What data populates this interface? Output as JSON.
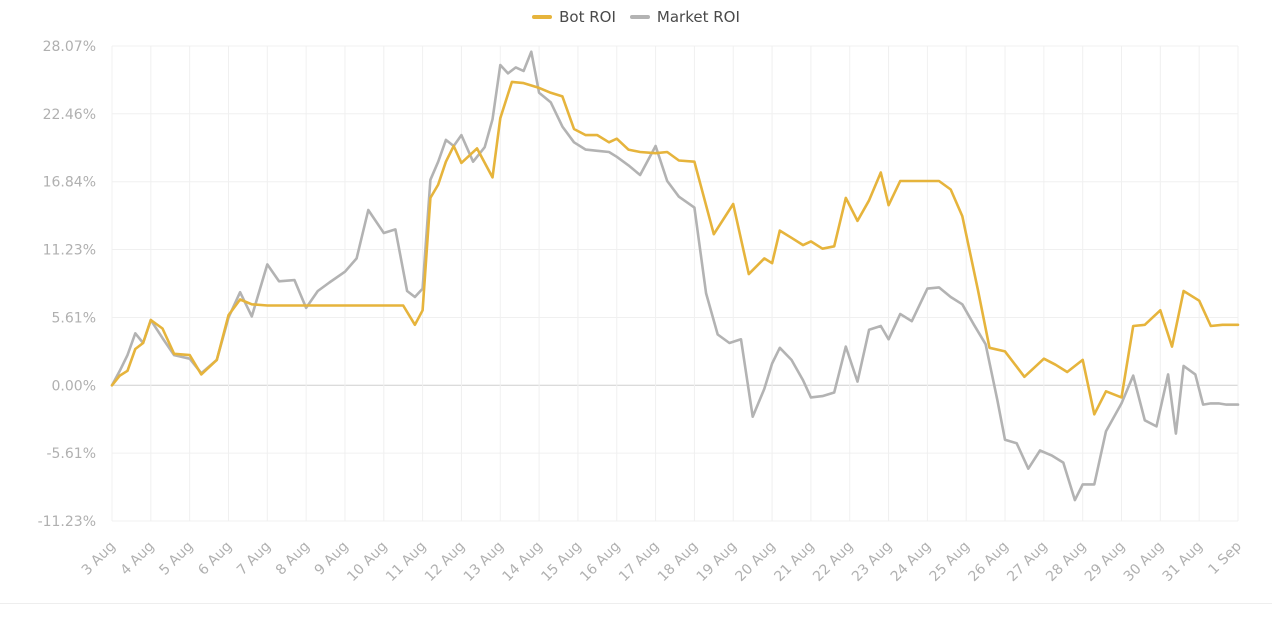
{
  "legend": [
    {
      "label": "Bot ROI",
      "color": "#e6b43c"
    },
    {
      "label": "Market ROI",
      "color": "#b3b3b3"
    }
  ],
  "chart_data": {
    "type": "line",
    "y_ticks": [
      "28.07%",
      "22.46%",
      "16.84%",
      "11.23%",
      "5.61%",
      "0.00%",
      "-5.61%",
      "-11.23%"
    ],
    "y_tick_values": [
      28.07,
      22.46,
      16.84,
      11.23,
      5.61,
      0.0,
      -5.61,
      -11.23
    ],
    "ylim": [
      -11.23,
      28.07
    ],
    "x_ticks": [
      "3 Aug",
      "4 Aug",
      "5 Aug",
      "6 Aug",
      "7 Aug",
      "8 Aug",
      "9 Aug",
      "10 Aug",
      "11 Aug",
      "12 Aug",
      "13 Aug",
      "14 Aug",
      "15 Aug",
      "16 Aug",
      "17 Aug",
      "18 Aug",
      "19 Aug",
      "20 Aug",
      "21 Aug",
      "22 Aug",
      "23 Aug",
      "24 Aug",
      "25 Aug",
      "26 Aug",
      "27 Aug",
      "28 Aug",
      "29 Aug",
      "30 Aug",
      "31 Aug",
      "1 Sep"
    ],
    "grid": true,
    "legend_position": "top-center",
    "series": [
      {
        "name": "Bot ROI",
        "color": "#e6b43c",
        "x": [
          0,
          0.2,
          0.4,
          0.6,
          0.8,
          1.0,
          1.3,
          1.6,
          2.0,
          2.3,
          2.7,
          3.0,
          3.3,
          3.6,
          4.0,
          4.3,
          4.7,
          5.0,
          5.3,
          5.6,
          6.0,
          6.5,
          7.0,
          7.5,
          7.8,
          8.0,
          8.2,
          8.4,
          8.6,
          8.8,
          9.0,
          9.4,
          9.8,
          10.0,
          10.3,
          10.6,
          11.0,
          11.3,
          11.6,
          11.9,
          12.2,
          12.5,
          12.8,
          13.0,
          13.3,
          13.6,
          14.0,
          14.3,
          14.6,
          15.0,
          15.5,
          16.0,
          16.4,
          16.8,
          17.0,
          17.2,
          17.5,
          17.8,
          18.0,
          18.3,
          18.6,
          18.9,
          19.2,
          19.5,
          19.8,
          20.0,
          20.3,
          20.6,
          21.0,
          21.3,
          21.6,
          21.9,
          22.3,
          22.6,
          23.0,
          23.5,
          24.0,
          24.3,
          24.6,
          25.0,
          25.3,
          25.6,
          26.0,
          26.3,
          26.6,
          27.0,
          27.3,
          27.6,
          28.0,
          28.3,
          28.6,
          28.8,
          29.0
        ],
        "y": [
          0.0,
          0.8,
          1.2,
          3.0,
          3.5,
          5.4,
          4.7,
          2.6,
          2.5,
          0.9,
          2.1,
          5.8,
          7.1,
          6.7,
          6.6,
          6.6,
          6.6,
          6.6,
          6.6,
          6.6,
          6.6,
          6.6,
          6.6,
          6.6,
          5.0,
          6.2,
          15.5,
          16.6,
          18.5,
          19.8,
          18.4,
          19.6,
          17.2,
          22.1,
          25.1,
          25.0,
          24.6,
          24.2,
          23.9,
          21.2,
          20.7,
          20.7,
          20.1,
          20.4,
          19.5,
          19.3,
          19.2,
          19.3,
          18.6,
          18.5,
          12.5,
          15.0,
          9.2,
          10.5,
          10.1,
          12.8,
          12.2,
          11.6,
          11.9,
          11.3,
          11.5,
          15.5,
          13.6,
          15.3,
          17.6,
          14.9,
          16.9,
          16.9,
          16.9,
          16.9,
          16.2,
          14.0,
          7.9,
          3.1,
          2.8,
          0.7,
          2.2,
          1.7,
          1.1,
          2.1,
          -2.4,
          -0.5,
          -1.0,
          4.9,
          5.0,
          6.2,
          3.2,
          7.8,
          7.0,
          4.9,
          5.0,
          5.0,
          5.0
        ]
      },
      {
        "name": "Market ROI",
        "color": "#b3b3b3",
        "x": [
          0,
          0.2,
          0.4,
          0.6,
          0.8,
          1.0,
          1.3,
          1.6,
          2.0,
          2.3,
          2.7,
          3.0,
          3.3,
          3.6,
          4.0,
          4.3,
          4.7,
          5.0,
          5.3,
          5.6,
          6.0,
          6.3,
          6.6,
          7.0,
          7.3,
          7.6,
          7.8,
          8.0,
          8.2,
          8.4,
          8.6,
          8.8,
          9.0,
          9.3,
          9.6,
          9.8,
          10.0,
          10.2,
          10.4,
          10.6,
          10.8,
          11.0,
          11.3,
          11.6,
          11.9,
          12.2,
          12.5,
          12.8,
          13.0,
          13.3,
          13.6,
          14.0,
          14.3,
          14.6,
          15.0,
          15.3,
          15.6,
          15.9,
          16.2,
          16.5,
          16.8,
          17.0,
          17.2,
          17.5,
          17.8,
          18.0,
          18.3,
          18.6,
          18.9,
          19.2,
          19.5,
          19.8,
          20.0,
          20.3,
          20.6,
          21.0,
          21.3,
          21.6,
          21.9,
          22.2,
          22.5,
          22.8,
          23.0,
          23.3,
          23.6,
          23.9,
          24.2,
          24.5,
          24.8,
          25.0,
          25.3,
          25.6,
          26.0,
          26.3,
          26.6,
          26.9,
          27.2,
          27.4,
          27.6,
          27.9,
          28.1,
          28.3,
          28.5,
          28.7,
          29.0
        ],
        "y": [
          0.0,
          1.2,
          2.5,
          4.3,
          3.5,
          5.4,
          3.9,
          2.5,
          2.2,
          1.0,
          2.1,
          5.6,
          7.7,
          5.7,
          10.0,
          8.6,
          8.7,
          6.4,
          7.8,
          8.5,
          9.4,
          10.5,
          14.5,
          12.6,
          12.9,
          7.8,
          7.3,
          8.0,
          17.0,
          18.5,
          20.3,
          19.8,
          20.7,
          18.5,
          19.7,
          22.0,
          26.5,
          25.8,
          26.3,
          26.0,
          27.6,
          24.2,
          23.4,
          21.4,
          20.1,
          19.5,
          19.4,
          19.3,
          18.9,
          18.2,
          17.4,
          19.8,
          16.9,
          15.6,
          14.7,
          7.6,
          4.2,
          3.5,
          3.8,
          -2.6,
          -0.3,
          1.8,
          3.1,
          2.1,
          0.4,
          -1.0,
          -0.9,
          -0.6,
          3.2,
          0.3,
          4.6,
          4.9,
          3.8,
          5.9,
          5.3,
          8.0,
          8.1,
          7.3,
          6.7,
          5.0,
          3.4,
          -1.2,
          -4.5,
          -4.8,
          -6.9,
          -5.4,
          -5.8,
          -6.4,
          -9.5,
          -8.2,
          -8.2,
          -3.8,
          -1.5,
          0.8,
          -2.9,
          -3.4,
          0.9,
          -4.0,
          1.6,
          0.9,
          -1.6,
          -1.5,
          -1.5,
          -1.6,
          -1.6
        ]
      }
    ]
  }
}
